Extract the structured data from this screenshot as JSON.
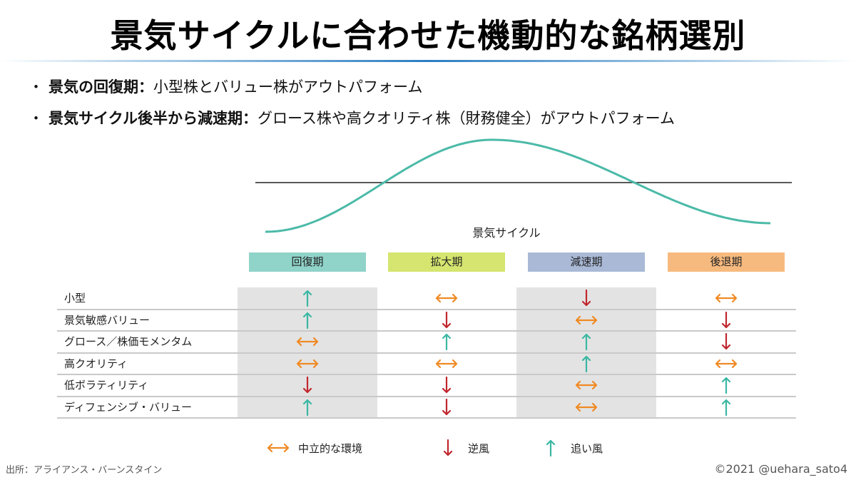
{
  "title": "景気サイクルに合わせた機動的な銘柄選別",
  "bullets": [
    {
      "marker": "・",
      "bold": "景気の回復期：",
      "text": "小型株とバリュー株がアウトパフォーム"
    },
    {
      "marker": "・",
      "bold": "景気サイクル後半から減速期：",
      "text": "グロース株や高クオリティ株（財務健全）がアウトパフォーム"
    }
  ],
  "cycle_label": "景気サイクル",
  "colors": {
    "wave": "#4bbaa8",
    "up": "#3bb7a3",
    "down": "#c0272d",
    "neutral": "#f08a24",
    "band": "#e3e3e3",
    "title_rule": "#2b7ec1"
  },
  "phases": [
    {
      "label": "回復期",
      "color": "#8fd3c9"
    },
    {
      "label": "拡大期",
      "color": "#d5e56f"
    },
    {
      "label": "減速期",
      "color": "#a9b9d6"
    },
    {
      "label": "後退期",
      "color": "#f7ba7e"
    }
  ],
  "rows": [
    {
      "label": "小型",
      "signals": [
        "up",
        "neutral",
        "down",
        "neutral"
      ]
    },
    {
      "label": "景気敏感バリュー",
      "signals": [
        "up",
        "down",
        "neutral",
        "down"
      ]
    },
    {
      "label": "グロース／株価モメンタム",
      "signals": [
        "neutral",
        "up",
        "up",
        "down"
      ]
    },
    {
      "label": "高クオリティ",
      "signals": [
        "neutral",
        "neutral",
        "up",
        "neutral"
      ]
    },
    {
      "label": "低ボラティリティ",
      "signals": [
        "down",
        "down",
        "neutral",
        "up"
      ]
    },
    {
      "label": "ディフェンシブ・バリュー",
      "signals": [
        "up",
        "down",
        "neutral",
        "up"
      ]
    }
  ],
  "legend": [
    {
      "type": "neutral",
      "label": "中立的な環境"
    },
    {
      "type": "down",
      "label": "逆風"
    },
    {
      "type": "up",
      "label": "追い風"
    }
  ],
  "source": "出所：アライアンス・バーンスタイン",
  "copyright": "©2021 @uehara_sato4"
}
